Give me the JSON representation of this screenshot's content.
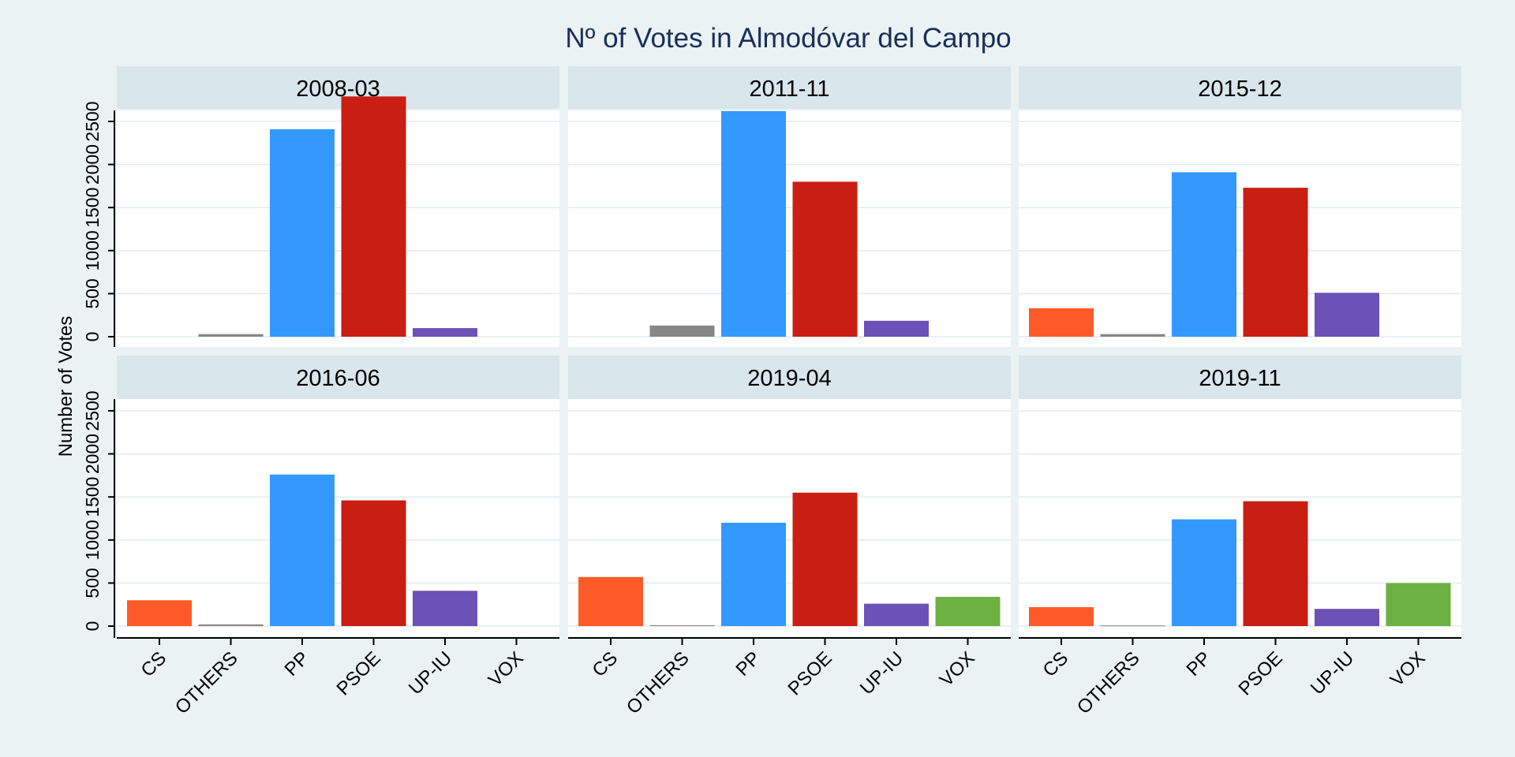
{
  "chart_data": {
    "type": "bar",
    "title": "Nº of Votes in Almodóvar del Campo",
    "ylabel": "Number of Votes",
    "xlabel": "",
    "ylim": [
      0,
      2600
    ],
    "yticks": [
      0,
      500,
      1000,
      1500,
      2000,
      2500
    ],
    "grid": true,
    "categories": [
      "CS",
      "OTHERS",
      "PP",
      "PSOE",
      "UP-IU",
      "VOX"
    ],
    "colors": {
      "CS": "#ff5a27",
      "OTHERS": "#878787",
      "PP": "#3399ff",
      "PSOE": "#c91e12",
      "UP-IU": "#6c51b7",
      "VOX": "#6db142"
    },
    "panels": [
      {
        "label": "2008-03",
        "values": [
          0,
          30,
          2410,
          2790,
          100,
          0
        ]
      },
      {
        "label": "2011-11",
        "values": [
          0,
          130,
          2620,
          1800,
          185,
          0
        ]
      },
      {
        "label": "2015-12",
        "values": [
          330,
          30,
          1910,
          1730,
          510,
          0
        ]
      },
      {
        "label": "2016-06",
        "values": [
          300,
          20,
          1760,
          1460,
          410,
          0
        ]
      },
      {
        "label": "2019-04",
        "values": [
          570,
          10,
          1200,
          1550,
          260,
          340
        ]
      },
      {
        "label": "2019-11",
        "values": [
          220,
          8,
          1240,
          1450,
          200,
          500
        ]
      }
    ]
  }
}
